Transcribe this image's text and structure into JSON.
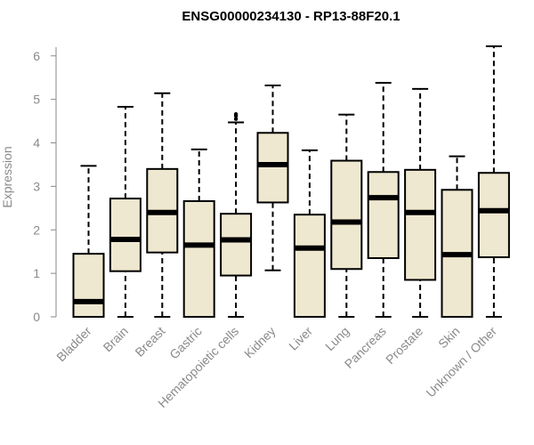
{
  "chart_data": {
    "type": "boxplot",
    "title": "ENSG00000234130 - RP13-88F20.1",
    "ylabel": "Expression",
    "ylim": [
      0,
      6.2
    ],
    "yticks": [
      0,
      1,
      2,
      3,
      4,
      5,
      6
    ],
    "grid": false,
    "box_color": "#efe8d0",
    "categories": [
      "Bladder",
      "Brain",
      "Breast",
      "Gastric",
      "Hematopoietic cells",
      "Kidney",
      "Liver",
      "Lung",
      "Pancreas",
      "Prostate",
      "Skin",
      "Unknown / Other"
    ],
    "boxes": [
      {
        "min": 0,
        "q1": 0,
        "median": 0.35,
        "q3": 1.45,
        "max": 3.47,
        "outliers": []
      },
      {
        "min": 0,
        "q1": 1.05,
        "median": 1.78,
        "q3": 2.72,
        "max": 4.83,
        "outliers": []
      },
      {
        "min": 0,
        "q1": 1.48,
        "median": 2.4,
        "q3": 3.4,
        "max": 5.14,
        "outliers": []
      },
      {
        "min": 0,
        "q1": 0,
        "median": 1.65,
        "q3": 2.66,
        "max": 3.85,
        "outliers": []
      },
      {
        "min": 0,
        "q1": 0.95,
        "median": 1.77,
        "q3": 2.37,
        "max": 4.47,
        "outliers": [
          4.55,
          4.62,
          4.66
        ]
      },
      {
        "min": 1.07,
        "q1": 2.63,
        "median": 3.5,
        "q3": 4.23,
        "max": 5.32,
        "outliers": []
      },
      {
        "min": 0,
        "q1": 0,
        "median": 1.58,
        "q3": 2.35,
        "max": 3.83,
        "outliers": []
      },
      {
        "min": 0,
        "q1": 1.1,
        "median": 2.18,
        "q3": 3.59,
        "max": 4.65,
        "outliers": []
      },
      {
        "min": 0,
        "q1": 1.35,
        "median": 2.74,
        "q3": 3.33,
        "max": 5.38,
        "outliers": []
      },
      {
        "min": 0,
        "q1": 0.85,
        "median": 2.4,
        "q3": 3.38,
        "max": 5.24,
        "outliers": []
      },
      {
        "min": 0,
        "q1": 0,
        "median": 1.43,
        "q3": 2.92,
        "max": 3.69,
        "outliers": []
      },
      {
        "min": 0,
        "q1": 1.37,
        "median": 2.44,
        "q3": 3.31,
        "max": 6.22,
        "outliers": []
      }
    ]
  }
}
